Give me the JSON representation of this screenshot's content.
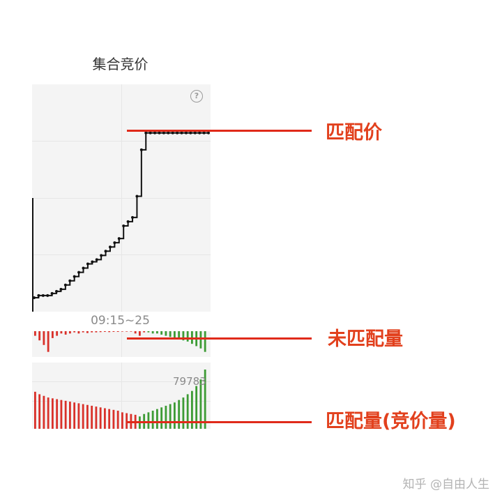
{
  "chart": {
    "title": "集合竞价",
    "time_range_label": "09:15~25",
    "volume_label": "79783",
    "help_icon": "?"
  },
  "annotations": {
    "match_price": "匹配价",
    "unmatched_volume": "未匹配量",
    "matched_volume": "匹配量(竞价量)"
  },
  "watermark": "知乎 @自由人生",
  "colors": {
    "up": "#d9312a",
    "down": "#3d9b35",
    "price_line": "#111111",
    "annotation": "#e2401d"
  },
  "chart_data": {
    "type": "line",
    "x_label": "09:15~25",
    "price_series": [
      0.02,
      0.03,
      0.03,
      0.03,
      0.04,
      0.05,
      0.06,
      0.08,
      0.1,
      0.12,
      0.14,
      0.16,
      0.18,
      0.19,
      0.2,
      0.22,
      0.24,
      0.26,
      0.28,
      0.3,
      0.36,
      0.38,
      0.4,
      0.5,
      0.72,
      0.8,
      0.8,
      0.8,
      0.8,
      0.8,
      0.8,
      0.8,
      0.8,
      0.8,
      0.8,
      0.8,
      0.8,
      0.8,
      0.8,
      0.8
    ],
    "unmatched_series": [
      -0.2,
      -0.4,
      -0.6,
      -0.9,
      -0.3,
      -0.2,
      -0.1,
      -0.15,
      -0.1,
      -0.05,
      -0.1,
      -0.05,
      -0.08,
      -0.05,
      -0.05,
      -0.04,
      -0.03,
      -0.04,
      -0.03,
      -0.03,
      -0.02,
      -0.02,
      -0.02,
      -0.1,
      -0.2,
      -0.05,
      0.05,
      0.1,
      0.1,
      0.15,
      0.2,
      0.25,
      0.3,
      0.35,
      0.4,
      0.45,
      0.55,
      0.65,
      0.75,
      0.9
    ],
    "matched_series": [
      0.45,
      0.42,
      0.4,
      0.38,
      0.37,
      0.36,
      0.35,
      0.34,
      0.33,
      0.32,
      0.31,
      0.3,
      0.29,
      0.28,
      0.27,
      0.26,
      0.25,
      0.24,
      0.23,
      0.22,
      0.2,
      0.19,
      0.18,
      0.17,
      0.15,
      0.18,
      0.2,
      0.22,
      0.24,
      0.26,
      0.28,
      0.3,
      0.32,
      0.35,
      0.38,
      0.42,
      0.46,
      0.52,
      0.6,
      0.72
    ]
  }
}
